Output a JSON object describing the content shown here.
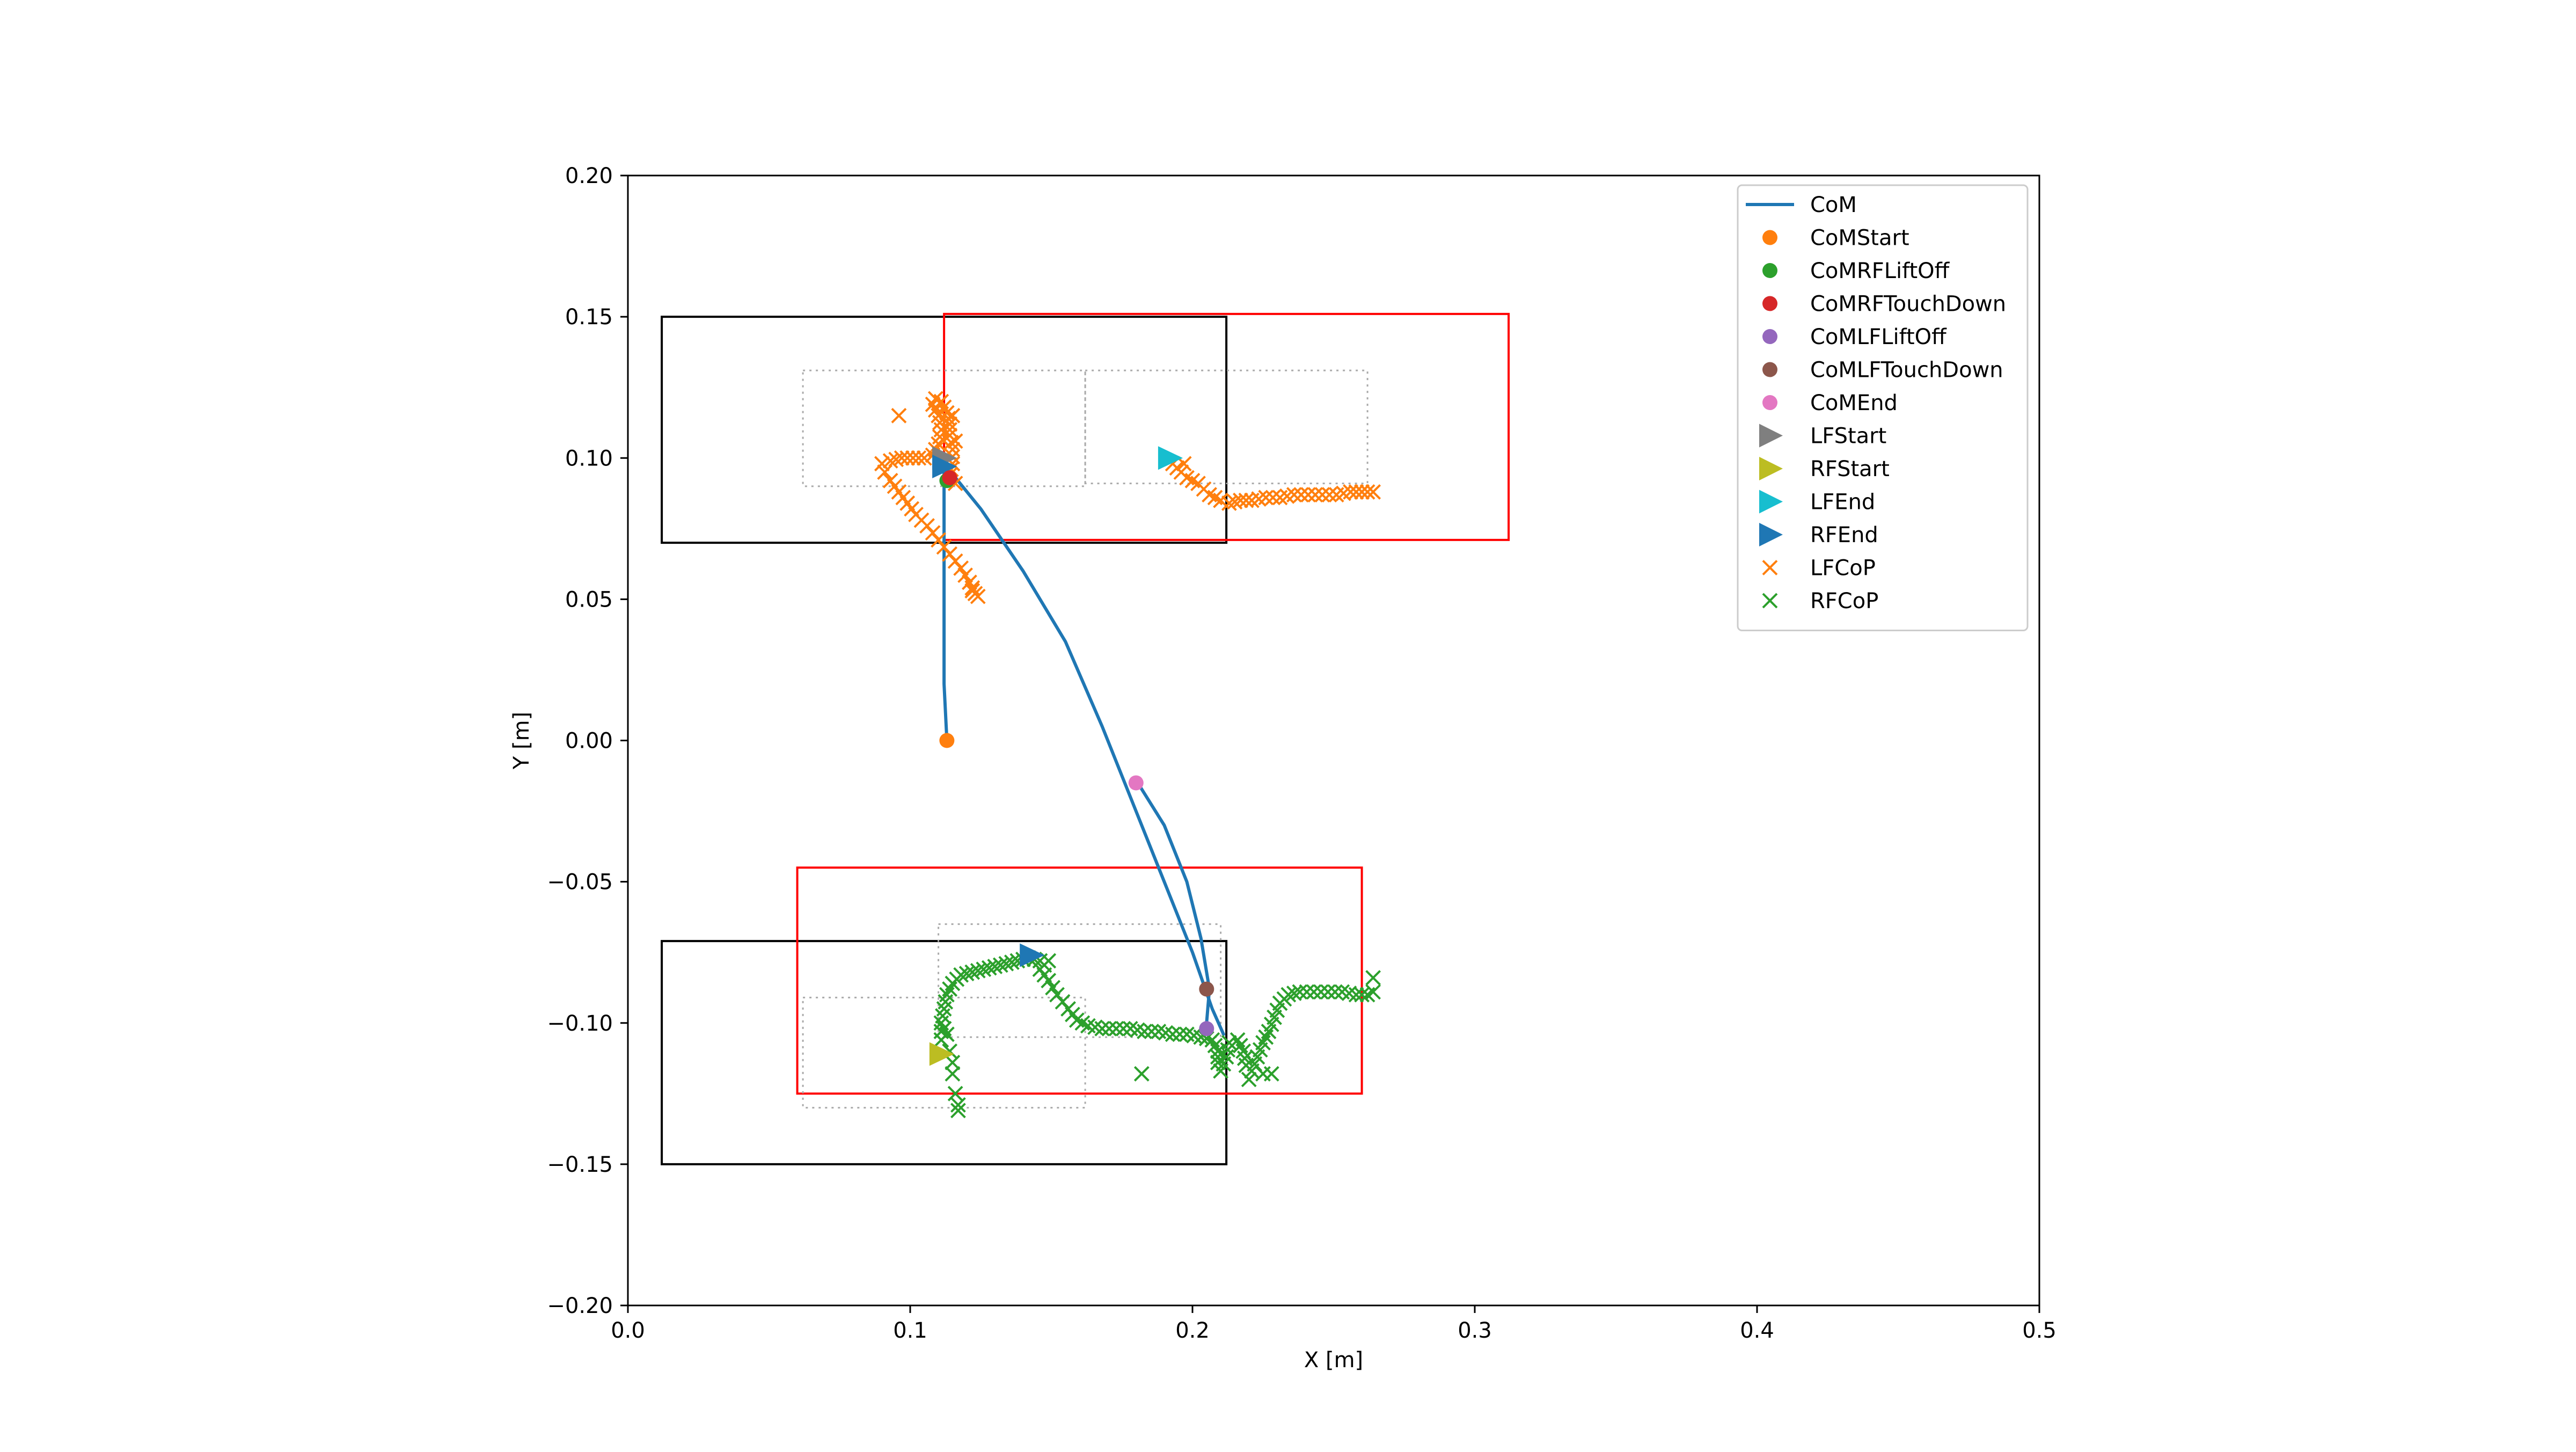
{
  "chart_data": {
    "type": "scatter",
    "title": "",
    "xlabel": "X [m]",
    "ylabel": "Y [m]",
    "xlim": [
      0.0,
      0.5
    ],
    "ylim": [
      -0.2,
      0.2
    ],
    "xticks": [
      0.0,
      0.1,
      0.2,
      0.3,
      0.4,
      0.5
    ],
    "xtick_labels": [
      "0.0",
      "0.1",
      "0.2",
      "0.3",
      "0.4",
      "0.5"
    ],
    "yticks": [
      0.2,
      0.15,
      0.1,
      0.05,
      0.0,
      -0.05,
      -0.1,
      -0.15,
      -0.2
    ],
    "ytick_labels": [
      "0.20",
      "0.15",
      "0.10",
      "0.05",
      "0.00",
      "−0.05",
      "−0.10",
      "−0.15",
      "−0.20"
    ],
    "grid": false,
    "legend_position": "top-right",
    "colors": {
      "com": "#1f77b4",
      "com_start": "#ff7f0e",
      "com_rf_liftoff": "#2ca02c",
      "com_rf_touchdown": "#d62728",
      "com_lf_liftoff": "#9467bd",
      "com_lf_touchdown": "#8c564b",
      "com_end": "#e377c2",
      "lf_start": "#7f7f7f",
      "rf_start": "#bcbd22",
      "lf_end": "#17becf",
      "rf_end": "#1f77b4",
      "lf_cop": "#ff7f0e",
      "rf_cop": "#2ca02c",
      "foot_start_box": "#000000",
      "foot_end_box": "#ff0000",
      "support_box": "#aaaaaa"
    },
    "legend": [
      {
        "label": "CoM",
        "kind": "line",
        "color": "#1f77b4"
      },
      {
        "label": "CoMStart",
        "kind": "dot",
        "color": "#ff7f0e"
      },
      {
        "label": "CoMRFLiftOff",
        "kind": "dot",
        "color": "#2ca02c"
      },
      {
        "label": "CoMRFTouchDown",
        "kind": "dot",
        "color": "#d62728"
      },
      {
        "label": "CoMLFLiftOff",
        "kind": "dot",
        "color": "#9467bd"
      },
      {
        "label": "CoMLFTouchDown",
        "kind": "dot",
        "color": "#8c564b"
      },
      {
        "label": "CoMEnd",
        "kind": "dot",
        "color": "#e377c2"
      },
      {
        "label": "LFStart",
        "kind": "triangle",
        "color": "#7f7f7f"
      },
      {
        "label": "RFStart",
        "kind": "triangle",
        "color": "#bcbd22"
      },
      {
        "label": "LFEnd",
        "kind": "triangle",
        "color": "#17becf"
      },
      {
        "label": "RFEnd",
        "kind": "triangle",
        "color": "#1f77b4"
      },
      {
        "label": "LFCoP",
        "kind": "cross",
        "color": "#ff7f0e"
      },
      {
        "label": "RFCoP",
        "kind": "cross",
        "color": "#2ca02c"
      }
    ],
    "rectangles": [
      {
        "name": "lf-start-box",
        "x": [
          0.012,
          0.212
        ],
        "y": [
          0.07,
          0.15
        ],
        "color": "#000000",
        "dashed": false
      },
      {
        "name": "lf-end-box",
        "x": [
          0.112,
          0.312
        ],
        "y": [
          0.071,
          0.151
        ],
        "color": "#ff0000",
        "dashed": false
      },
      {
        "name": "rf-start-box",
        "x": [
          0.012,
          0.212
        ],
        "y": [
          -0.15,
          -0.071
        ],
        "color": "#000000",
        "dashed": false
      },
      {
        "name": "rf-end-box",
        "x": [
          0.06,
          0.26
        ],
        "y": [
          -0.125,
          -0.045
        ],
        "color": "#ff0000",
        "dashed": false
      },
      {
        "name": "lf-support-box-1",
        "x": [
          0.062,
          0.162
        ],
        "y": [
          0.09,
          0.131
        ],
        "color": "#aaaaaa",
        "dashed": true
      },
      {
        "name": "lf-support-box-2",
        "x": [
          0.162,
          0.262
        ],
        "y": [
          0.091,
          0.131
        ],
        "color": "#aaaaaa",
        "dashed": true
      },
      {
        "name": "rf-support-box-1",
        "x": [
          0.062,
          0.162
        ],
        "y": [
          -0.13,
          -0.091
        ],
        "color": "#aaaaaa",
        "dashed": true
      },
      {
        "name": "rf-support-box-2",
        "x": [
          0.11,
          0.21
        ],
        "y": [
          -0.105,
          -0.065
        ],
        "color": "#aaaaaa",
        "dashed": true
      }
    ],
    "com_paths": [
      {
        "name": "com-path-stance",
        "points": [
          [
            0.113,
            0.0
          ],
          [
            0.112,
            0.02
          ],
          [
            0.112,
            0.05
          ],
          [
            0.112,
            0.08
          ],
          [
            0.112,
            0.098
          ]
        ]
      },
      {
        "name": "com-path-transfer",
        "points": [
          [
            0.112,
            0.098
          ],
          [
            0.125,
            0.082
          ],
          [
            0.14,
            0.06
          ],
          [
            0.155,
            0.035
          ],
          [
            0.168,
            0.005
          ],
          [
            0.18,
            -0.025
          ],
          [
            0.19,
            -0.05
          ],
          [
            0.2,
            -0.075
          ],
          [
            0.207,
            -0.095
          ],
          [
            0.211,
            -0.104
          ]
        ]
      },
      {
        "name": "com-path-settle",
        "points": [
          [
            0.18,
            -0.014
          ],
          [
            0.19,
            -0.03
          ],
          [
            0.198,
            -0.05
          ],
          [
            0.203,
            -0.07
          ],
          [
            0.206,
            -0.088
          ],
          [
            0.205,
            -0.1
          ]
        ]
      }
    ],
    "com_events": [
      {
        "name": "CoMStart",
        "x": 0.113,
        "y": 0.0,
        "color": "#ff7f0e"
      },
      {
        "name": "CoMRFLiftOff",
        "x": 0.113,
        "y": 0.092,
        "color": "#2ca02c"
      },
      {
        "name": "CoMRFTouchDown",
        "x": 0.114,
        "y": 0.093,
        "color": "#d62728"
      },
      {
        "name": "CoMLFLiftOff",
        "x": 0.205,
        "y": -0.102,
        "color": "#9467bd"
      },
      {
        "name": "CoMLFTouchDown",
        "x": 0.205,
        "y": -0.088,
        "color": "#8c564b"
      },
      {
        "name": "CoMEnd",
        "x": 0.18,
        "y": -0.015,
        "color": "#e377c2"
      }
    ],
    "foot_markers": [
      {
        "name": "LFStart",
        "x": 0.112,
        "y": 0.1,
        "color": "#7f7f7f"
      },
      {
        "name": "RFStart",
        "x": 0.111,
        "y": -0.111,
        "color": "#bcbd22"
      },
      {
        "name": "LFEnd",
        "x": 0.192,
        "y": 0.1,
        "color": "#17becf"
      },
      {
        "name": "RFEnd",
        "x": 0.143,
        "y": -0.076,
        "color": "#1f77b4"
      },
      {
        "name": "RFEnd-initial",
        "x": 0.112,
        "y": 0.097,
        "color": "#1f77b4"
      }
    ],
    "lf_cop_path": [
      [
        0.123,
        0.052
      ],
      [
        0.121,
        0.056
      ],
      [
        0.118,
        0.061
      ],
      [
        0.114,
        0.066
      ],
      [
        0.11,
        0.071
      ],
      [
        0.106,
        0.076
      ],
      [
        0.102,
        0.08
      ],
      [
        0.099,
        0.084
      ],
      [
        0.096,
        0.088
      ],
      [
        0.093,
        0.092
      ],
      [
        0.091,
        0.095
      ],
      [
        0.09,
        0.098
      ],
      [
        0.093,
        0.099
      ],
      [
        0.097,
        0.1
      ],
      [
        0.101,
        0.1
      ],
      [
        0.105,
        0.1
      ],
      [
        0.108,
        0.101
      ],
      [
        0.11,
        0.105
      ],
      [
        0.111,
        0.11
      ],
      [
        0.11,
        0.115
      ],
      [
        0.108,
        0.119
      ],
      [
        0.109,
        0.121
      ],
      [
        0.111,
        0.12
      ],
      [
        0.113,
        0.116
      ],
      [
        0.114,
        0.112
      ],
      [
        0.114,
        0.108
      ],
      [
        0.115,
        0.103
      ],
      [
        0.115,
        0.098
      ],
      [
        0.114,
        0.094
      ],
      [
        0.116,
        0.091
      ]
    ],
    "lf_cop_path_2": [
      [
        0.193,
        0.098
      ],
      [
        0.196,
        0.095
      ],
      [
        0.198,
        0.093
      ],
      [
        0.2,
        0.092
      ],
      [
        0.202,
        0.091
      ],
      [
        0.204,
        0.089
      ],
      [
        0.206,
        0.087
      ],
      [
        0.208,
        0.086
      ],
      [
        0.21,
        0.085
      ],
      [
        0.213,
        0.084
      ],
      [
        0.217,
        0.085
      ],
      [
        0.221,
        0.085
      ],
      [
        0.226,
        0.086
      ],
      [
        0.231,
        0.086
      ],
      [
        0.236,
        0.087
      ],
      [
        0.241,
        0.087
      ],
      [
        0.246,
        0.087
      ],
      [
        0.251,
        0.087
      ],
      [
        0.256,
        0.088
      ],
      [
        0.26,
        0.088
      ],
      [
        0.262,
        0.088
      ]
    ],
    "lf_cop_scatter": [
      [
        0.096,
        0.115
      ],
      [
        0.115,
        0.115
      ],
      [
        0.116,
        0.106
      ],
      [
        0.122,
        0.053
      ],
      [
        0.124,
        0.051
      ],
      [
        0.26,
        0.088
      ],
      [
        0.264,
        0.088
      ],
      [
        0.197,
        0.098
      ]
    ],
    "rf_cop_path": [
      [
        0.111,
        -0.106
      ],
      [
        0.111,
        -0.1
      ],
      [
        0.112,
        -0.095
      ],
      [
        0.113,
        -0.09
      ],
      [
        0.115,
        -0.086
      ],
      [
        0.118,
        -0.083
      ],
      [
        0.122,
        -0.082
      ],
      [
        0.126,
        -0.081
      ],
      [
        0.13,
        -0.08
      ],
      [
        0.134,
        -0.079
      ],
      [
        0.138,
        -0.078
      ],
      [
        0.142,
        -0.077
      ],
      [
        0.146,
        -0.078
      ],
      [
        0.149,
        -0.078
      ],
      [
        0.146,
        -0.081
      ],
      [
        0.149,
        -0.085
      ],
      [
        0.152,
        -0.09
      ],
      [
        0.156,
        -0.095
      ],
      [
        0.159,
        -0.099
      ],
      [
        0.163,
        -0.101
      ],
      [
        0.168,
        -0.102
      ],
      [
        0.173,
        -0.102
      ],
      [
        0.178,
        -0.102
      ],
      [
        0.183,
        -0.103
      ],
      [
        0.188,
        -0.103
      ],
      [
        0.193,
        -0.104
      ],
      [
        0.198,
        -0.104
      ],
      [
        0.203,
        -0.105
      ],
      [
        0.207,
        -0.106
      ],
      [
        0.209,
        -0.11
      ],
      [
        0.209,
        -0.114
      ],
      [
        0.21,
        -0.117
      ],
      [
        0.212,
        -0.112
      ],
      [
        0.213,
        -0.107
      ],
      [
        0.216,
        -0.106
      ],
      [
        0.218,
        -0.11
      ],
      [
        0.219,
        -0.115
      ],
      [
        0.221,
        -0.117
      ],
      [
        0.223,
        -0.112
      ],
      [
        0.225,
        -0.107
      ],
      [
        0.227,
        -0.103
      ],
      [
        0.229,
        -0.098
      ],
      [
        0.231,
        -0.093
      ],
      [
        0.234,
        -0.09
      ],
      [
        0.238,
        -0.089
      ],
      [
        0.243,
        -0.089
      ],
      [
        0.248,
        -0.089
      ],
      [
        0.253,
        -0.089
      ],
      [
        0.258,
        -0.09
      ],
      [
        0.262,
        -0.09
      ],
      [
        0.264,
        -0.089
      ]
    ],
    "rf_cop_scatter": [
      [
        0.115,
        -0.118
      ],
      [
        0.116,
        -0.125
      ],
      [
        0.117,
        -0.129
      ],
      [
        0.117,
        -0.131
      ],
      [
        0.182,
        -0.118
      ],
      [
        0.22,
        -0.12
      ],
      [
        0.225,
        -0.118
      ],
      [
        0.228,
        -0.118
      ],
      [
        0.264,
        -0.084
      ],
      [
        0.112,
        -0.102
      ],
      [
        0.113,
        -0.104
      ],
      [
        0.114,
        -0.11
      ],
      [
        0.115,
        -0.114
      ]
    ]
  }
}
